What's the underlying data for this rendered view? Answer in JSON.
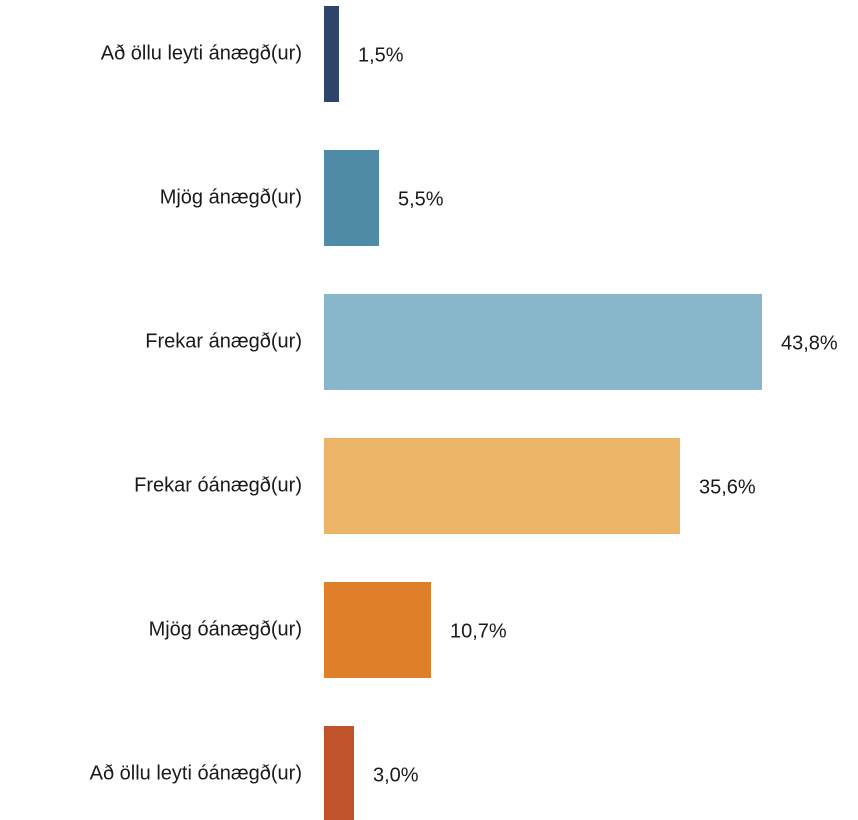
{
  "chart_data": {
    "type": "barh",
    "categories": [
      "Að öllu leyti ánægð(ur)",
      "Mjög ánægð(ur)",
      "Frekar ánægð(ur)",
      "Frekar óánægð(ur)",
      "Mjög óánægð(ur)",
      "Að öllu leyti óánægð(ur)"
    ],
    "values": [
      1.5,
      5.5,
      43.8,
      35.6,
      10.7,
      3.0
    ],
    "value_labels": [
      "1,5%",
      "5,5%",
      "43,8%",
      "35,6%",
      "10,7%",
      "3,0%"
    ],
    "colors": [
      "#2e4468",
      "#4f8aa6",
      "#88b7cc",
      "#ecb467",
      "#e07f2a",
      "#c1532a"
    ]
  }
}
